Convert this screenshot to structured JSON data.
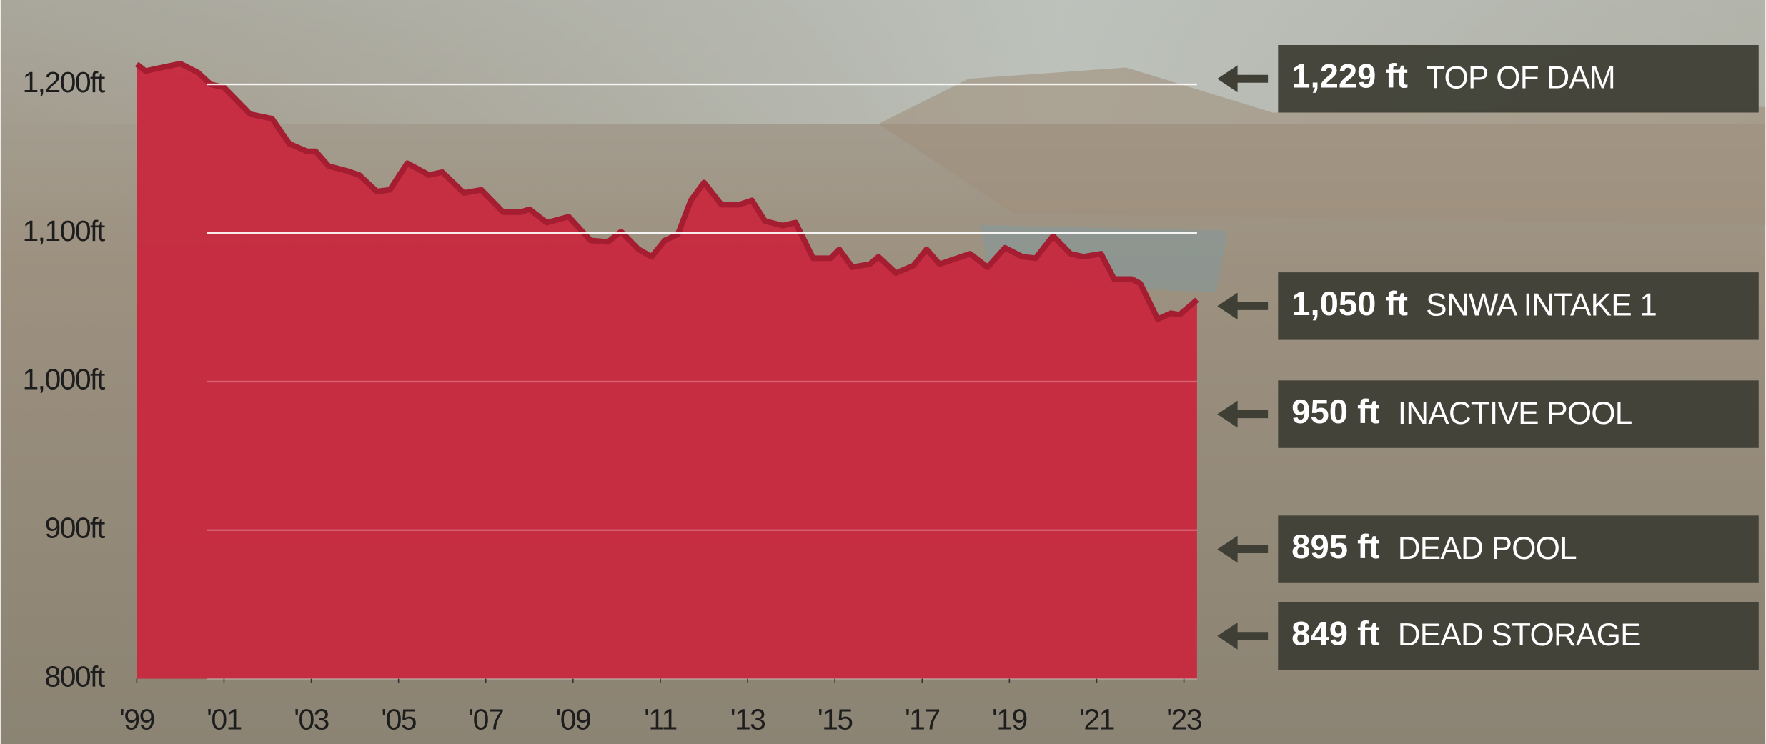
{
  "chart_data": {
    "type": "area",
    "color": "#c8283e",
    "line_color": "#a51d30",
    "x": [
      1999.0,
      1999.2,
      1999.5,
      2000.0,
      2000.4,
      2000.7,
      2001.0,
      2001.3,
      2001.6,
      2002.1,
      2002.5,
      2002.9,
      2003.1,
      2003.4,
      2003.8,
      2004.1,
      2004.5,
      2004.8,
      2005.2,
      2005.7,
      2006.0,
      2006.5,
      2006.9,
      2007.4,
      2007.8,
      2008.0,
      2008.4,
      2008.9,
      2009.4,
      2009.8,
      2010.1,
      2010.5,
      2010.8,
      2011.1,
      2011.4,
      2011.7,
      2012.0,
      2012.4,
      2012.8,
      2013.1,
      2013.4,
      2013.8,
      2014.1,
      2014.5,
      2014.9,
      2015.1,
      2015.4,
      2015.8,
      2016.0,
      2016.4,
      2016.8,
      2017.1,
      2017.4,
      2017.8,
      2018.1,
      2018.5,
      2018.9,
      2019.3,
      2019.6,
      2020.0,
      2020.4,
      2020.7,
      2021.1,
      2021.4,
      2021.8,
      2022.0,
      2022.4,
      2022.7,
      2022.9,
      2023.3
    ],
    "values": [
      1213.6,
      1209,
      1211,
      1214,
      1208,
      1200,
      1198,
      1189,
      1180,
      1177,
      1160,
      1155,
      1155,
      1145,
      1142,
      1139,
      1128,
      1129,
      1147,
      1139,
      1141,
      1127,
      1129,
      1114,
      1114,
      1116,
      1107,
      1111,
      1095,
      1094,
      1101,
      1089,
      1084,
      1095,
      1099,
      1122,
      1134,
      1119,
      1119,
      1122,
      1108,
      1105,
      1107,
      1083,
      1083,
      1089,
      1077,
      1079,
      1084,
      1073,
      1078,
      1089,
      1079,
      1083,
      1086,
      1077,
      1090,
      1084,
      1083,
      1098,
      1086,
      1084,
      1086,
      1069,
      1069,
      1066,
      1042,
      1046,
      1045,
      1055
    ],
    "xlim": [
      1999,
      2023.3
    ],
    "ylim": [
      800,
      1240
    ],
    "xticks": [
      {
        "value": 1999,
        "label": "'99"
      },
      {
        "value": 2001,
        "label": "'01"
      },
      {
        "value": 2003,
        "label": "'03"
      },
      {
        "value": 2005,
        "label": "'05"
      },
      {
        "value": 2007,
        "label": "'07"
      },
      {
        "value": 2009,
        "label": "'09"
      },
      {
        "value": 2011,
        "label": "'11"
      },
      {
        "value": 2013,
        "label": "'13"
      },
      {
        "value": 2015,
        "label": "'15"
      },
      {
        "value": 2017,
        "label": "'17"
      },
      {
        "value": 2019,
        "label": "'19"
      },
      {
        "value": 2021,
        "label": "'21"
      },
      {
        "value": 2023,
        "label": "'23"
      }
    ],
    "yticks": [
      {
        "value": 800,
        "label": "800ft"
      },
      {
        "value": 900,
        "label": "900ft"
      },
      {
        "value": 1000,
        "label": "1,000ft"
      },
      {
        "value": 1100,
        "label": "1,100ft"
      },
      {
        "value": 1200,
        "label": "1,200ft"
      }
    ],
    "grid": true,
    "annotations": [
      {
        "value": "1,229 ft",
        "label": "TOP OF DAM"
      },
      {
        "value": "1,050 ft",
        "label": "SNWA INTAKE 1"
      },
      {
        "value": "950 ft",
        "label": "INACTIVE POOL"
      },
      {
        "value": "895 ft",
        "label": "DEAD POOL"
      },
      {
        "value": "849 ft",
        "label": "DEAD STORAGE"
      }
    ]
  }
}
